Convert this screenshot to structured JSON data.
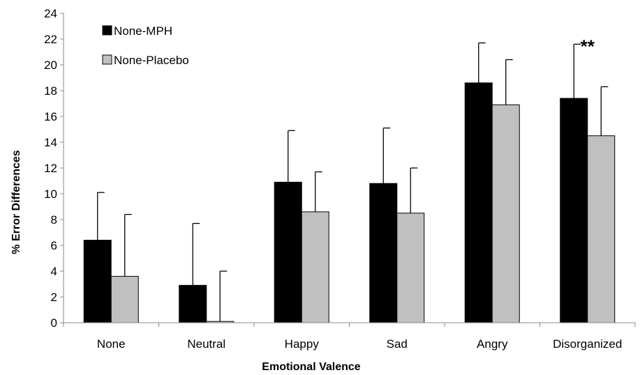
{
  "chart_data": {
    "type": "bar",
    "title": "",
    "xlabel": "Emotional Valence",
    "ylabel": "% Error Differences",
    "ylim": [
      0,
      24
    ],
    "ytick_step": 2,
    "categories": [
      "None",
      "Neutral",
      "Happy",
      "Sad",
      "Angry",
      "Disorganized"
    ],
    "series": [
      {
        "name": "None-MPH",
        "color": "#000000",
        "values": [
          6.4,
          2.9,
          10.9,
          10.8,
          18.6,
          17.4
        ],
        "error": [
          3.7,
          4.8,
          4.0,
          4.3,
          3.1,
          4.2
        ]
      },
      {
        "name": "None-Placebo",
        "color": "#c0c0c0",
        "values": [
          3.6,
          0.1,
          8.6,
          8.5,
          16.9,
          14.5
        ],
        "error": [
          4.8,
          3.9,
          3.1,
          3.5,
          3.5,
          3.8
        ]
      }
    ],
    "legend_position": "top-left",
    "grid": false,
    "annotations": [
      {
        "text": "**",
        "category": "Disorganized"
      }
    ]
  }
}
